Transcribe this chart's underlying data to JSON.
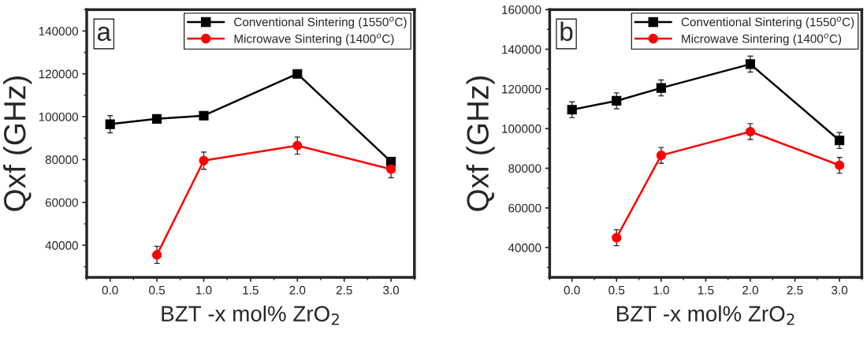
{
  "chart_data": [
    {
      "type": "line",
      "xlabel": "BZT -x mol% ZrO$_{2}$",
      "ylabel": "Qxf (GHz)",
      "annotations": [
        "a"
      ],
      "x": [
        0.0,
        0.5,
        1.0,
        2.0,
        3.0
      ],
      "xlim": [
        -0.25,
        3.25
      ],
      "xticks": [
        {
          "value": 0,
          "label": "0.0"
        },
        0.5,
        {
          "value": 1,
          "label": "1.0"
        },
        1.5,
        {
          "value": 2,
          "label": "2.0"
        },
        2.5,
        {
          "value": 3,
          "label": "3.0"
        }
      ],
      "ylim": [
        25000,
        150000
      ],
      "yticks": [
        40000,
        60000,
        80000,
        100000,
        120000,
        140000
      ],
      "grid": false,
      "legend": "top right",
      "line_style": "solid",
      "series": [
        {
          "name": "Conventional Sintering (1550$^{o}$C)",
          "color": "#000000",
          "marker": "square",
          "values": [
            96500,
            99000,
            100500,
            120000,
            79000
          ],
          "errors": [
            4000,
            1500,
            1500,
            1500,
            1500
          ]
        },
        {
          "name": "Microwave Sintering (1400$^{o}$C)",
          "color": "#ff0000",
          "marker": "circle",
          "values": [
            null,
            35500,
            79500,
            86500,
            75500
          ],
          "errors": [
            null,
            4000,
            4000,
            4000,
            4000
          ]
        }
      ]
    },
    {
      "type": "line",
      "xlabel": "BZT -x mol% ZrO$_{2}$",
      "ylabel": "Qxf (GHz)",
      "annotations": [
        "b"
      ],
      "x": [
        0.0,
        0.5,
        1.0,
        2.0,
        3.0
      ],
      "xlim": [
        -0.25,
        3.25
      ],
      "xticks": [
        {
          "value": 0,
          "label": "0.0"
        },
        0.5,
        {
          "value": 1,
          "label": "1.0"
        },
        1.5,
        {
          "value": 2,
          "label": "2.0"
        },
        2.5,
        {
          "value": 3,
          "label": "3.0"
        }
      ],
      "ylim": [
        25000,
        160000
      ],
      "yticks": [
        40000,
        60000,
        80000,
        100000,
        120000,
        140000,
        160000
      ],
      "grid": false,
      "legend": "top right",
      "line_style": "solid",
      "series": [
        {
          "name": "Conventional Sintering (1550$^{o}$C)",
          "color": "#000000",
          "marker": "square",
          "values": [
            109500,
            114000,
            120500,
            132500,
            94000
          ],
          "errors": [
            4000,
            4000,
            4000,
            4000,
            4000
          ]
        },
        {
          "name": "Microwave Sintering (1400$^{o}$C)",
          "color": "#ff0000",
          "marker": "circle",
          "values": [
            null,
            45000,
            86500,
            98500,
            81500
          ],
          "errors": [
            null,
            4000,
            4000,
            4000,
            4000
          ]
        }
      ]
    }
  ]
}
